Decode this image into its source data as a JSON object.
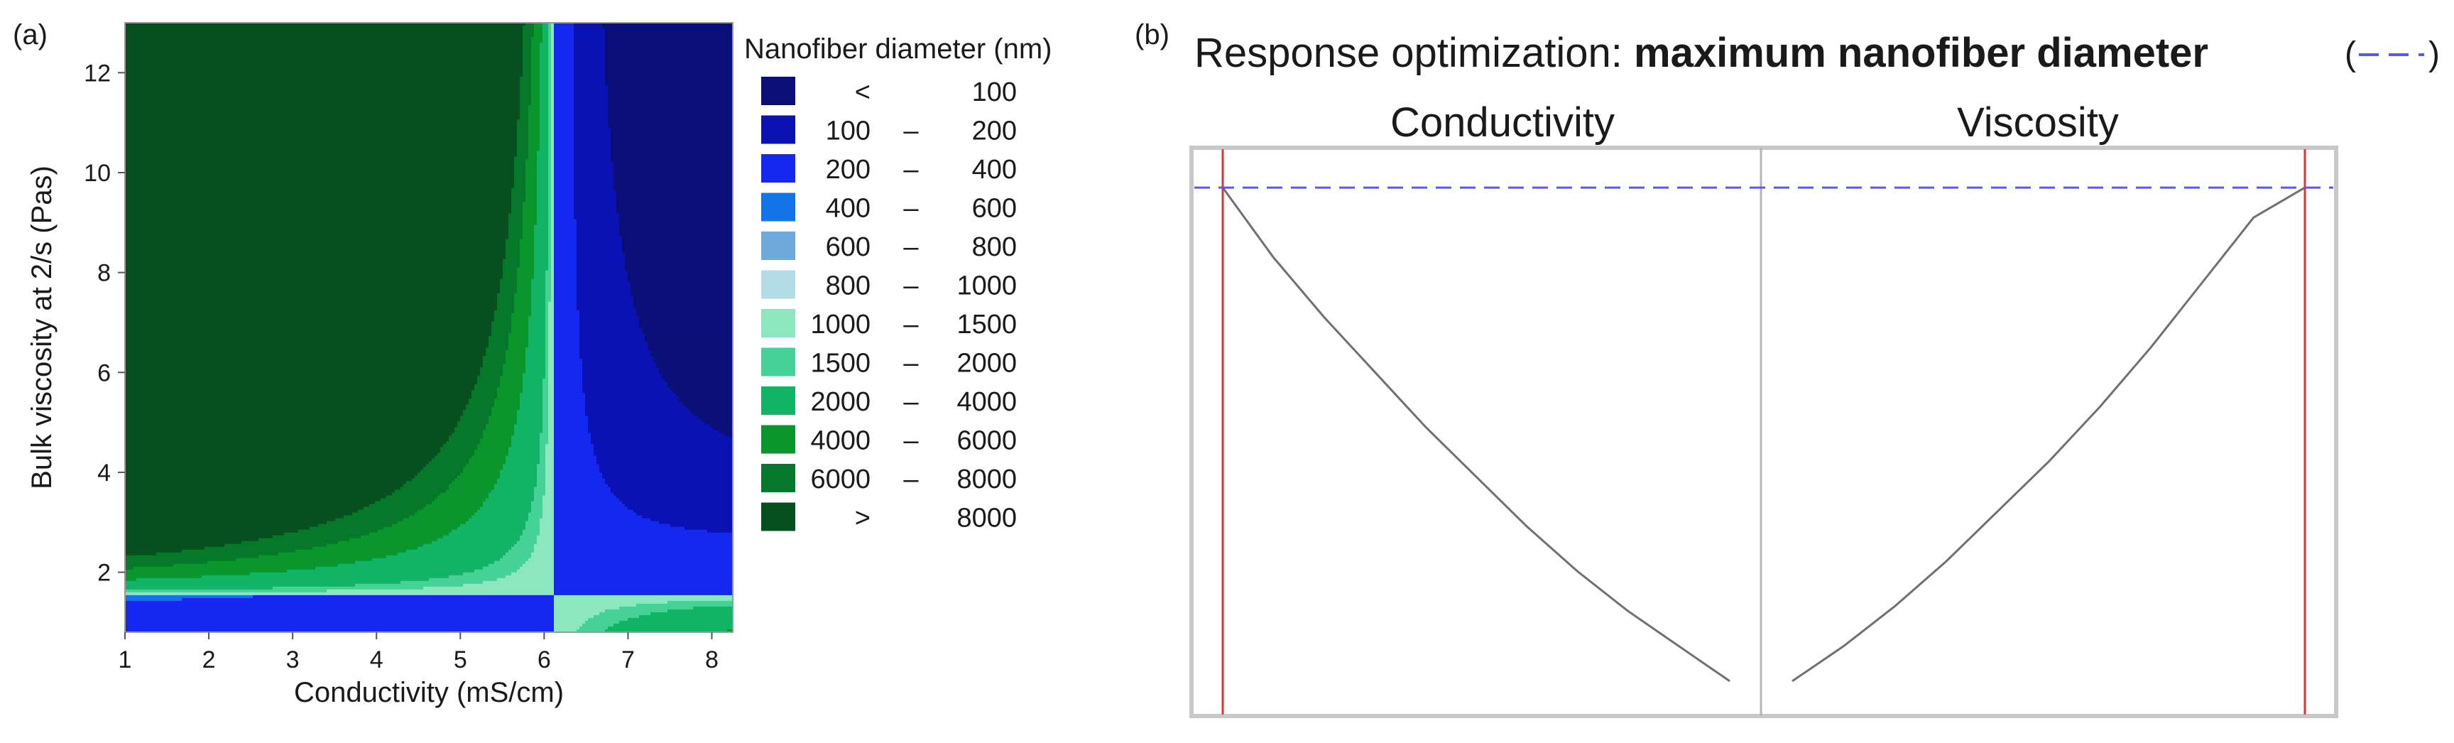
{
  "chart_data": [
    {
      "panel_label": "(a)",
      "type": "heatmap",
      "subtype": "filled-contour",
      "xlabel": "Conductivity (mS/cm)",
      "ylabel": "Bulk viscosity at 2/s (Pas)",
      "xlim": [
        1,
        8.25
      ],
      "ylim": [
        0.8,
        13
      ],
      "xticks": [
        "1",
        "2",
        "3",
        "4",
        "5",
        "6",
        "7",
        "8"
      ],
      "yticks": [
        "2",
        "4",
        "6",
        "8",
        "10",
        "12"
      ],
      "legend_title": "Nanofiber diameter (nm)",
      "legend_position": "right",
      "levels": [
        {
          "low": "<",
          "dash": "",
          "high": "100",
          "color": "#0a0f78"
        },
        {
          "low": "100",
          "dash": "–",
          "high": "200",
          "color": "#0a12b4"
        },
        {
          "low": "200",
          "dash": "–",
          "high": "400",
          "color": "#1428f0"
        },
        {
          "low": "400",
          "dash": "–",
          "high": "600",
          "color": "#1473e6"
        },
        {
          "low": "600",
          "dash": "–",
          "high": "800",
          "color": "#6eaadc"
        },
        {
          "low": "800",
          "dash": "–",
          "high": "1000",
          "color": "#b4dce6"
        },
        {
          "low": "1000",
          "dash": "–",
          "high": "1500",
          "color": "#8ce6be"
        },
        {
          "low": "1500",
          "dash": "–",
          "high": "2000",
          "color": "#46d296"
        },
        {
          "low": "2000",
          "dash": "–",
          "high": "4000",
          "color": "#10b464"
        },
        {
          "low": "4000",
          "dash": "–",
          "high": "6000",
          "color": "#08962d"
        },
        {
          "low": "6000",
          "dash": "–",
          "high": "8000",
          "color": "#06782a"
        },
        {
          "low": ">",
          "dash": "",
          "high": "8000",
          "color": "#065020"
        }
      ],
      "saddle": {
        "x": 6.1,
        "y": 1.55
      },
      "k": 6.2
    },
    {
      "panel_label": "(b)",
      "type": "line",
      "title_prefix": "Response optimization: ",
      "title_bold": "maximum nanofiber diameter",
      "title_suffix_open": "(",
      "title_suffix_close": ")",
      "optimum_line_color": "#5a5ae6",
      "setting_line_color": "#e63232",
      "curve_color": "#707070",
      "subplots": [
        {
          "name": "Conductivity",
          "x": [
            0,
            0.1,
            0.2,
            0.3,
            0.4,
            0.5,
            0.6,
            0.7,
            0.8,
            0.9,
            1.0
          ],
          "y": [
            0.94,
            0.8,
            0.68,
            0.57,
            0.46,
            0.36,
            0.26,
            0.17,
            0.09,
            0.02,
            -0.05
          ],
          "setting_x": 0
        },
        {
          "name": "Viscosity",
          "x": [
            0,
            0.1,
            0.2,
            0.3,
            0.4,
            0.5,
            0.6,
            0.7,
            0.8,
            0.9,
            1.0
          ],
          "y": [
            -0.05,
            0.02,
            0.1,
            0.19,
            0.29,
            0.39,
            0.5,
            0.62,
            0.75,
            0.88,
            0.94
          ],
          "setting_x": 1
        }
      ],
      "optimum_y": 0.94,
      "ylim": [
        -0.12,
        1.02
      ]
    }
  ]
}
